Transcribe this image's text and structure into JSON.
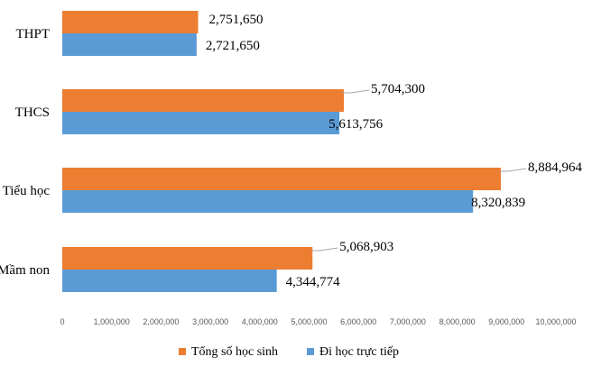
{
  "chart_data": {
    "type": "bar",
    "orientation": "horizontal",
    "categories": [
      "THPT",
      "THCS",
      "Tiểu học",
      "Mầm non"
    ],
    "series": [
      {
        "name": "Tổng số học sinh",
        "color": "#ED7D31",
        "values": [
          2751650,
          5704300,
          8884964,
          5068903
        ],
        "labels": [
          "2,751,650",
          "5,704,300",
          "8,884,964",
          "5,068,903"
        ]
      },
      {
        "name": "Đi học trực tiếp",
        "color": "#5B9BD5",
        "values": [
          2721650,
          5613756,
          8320839,
          4344774
        ],
        "labels": [
          "2,721,650",
          "5,613,756",
          "8,320,839",
          "4,344,774"
        ]
      }
    ],
    "xlim": [
      0,
      10000000
    ],
    "x_ticks": [
      "0",
      "1,000,000",
      "2,000,000",
      "3,000,000",
      "4,000,000",
      "5,000,000",
      "6,000,000",
      "7,000,000",
      "8,000,000",
      "9,000,000",
      "10,000,000"
    ],
    "grid": false,
    "legend": "bottom",
    "title": "",
    "xlabel": "",
    "ylabel": ""
  }
}
